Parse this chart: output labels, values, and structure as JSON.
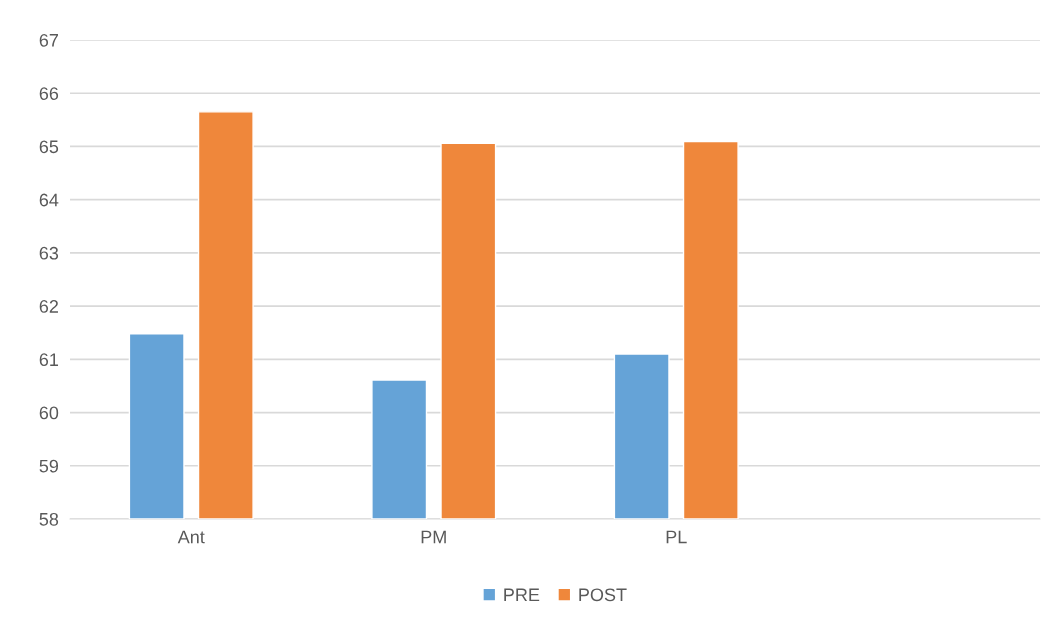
{
  "chart_data": {
    "type": "bar",
    "categories": [
      "Ant",
      "PM",
      "PL",
      null
    ],
    "series": [
      {
        "name": "PRE",
        "color": "#65a3d7",
        "values": [
          61.48,
          60.61,
          61.1,
          null
        ]
      },
      {
        "name": "POST",
        "color": "#ef873b",
        "values": [
          65.65,
          65.06,
          65.09,
          null
        ]
      }
    ],
    "ylim": [
      58,
      67
    ],
    "yticks": [
      58,
      59,
      60,
      61,
      62,
      63,
      64,
      65,
      66,
      67
    ],
    "grid": "y",
    "legend": "bottom"
  }
}
